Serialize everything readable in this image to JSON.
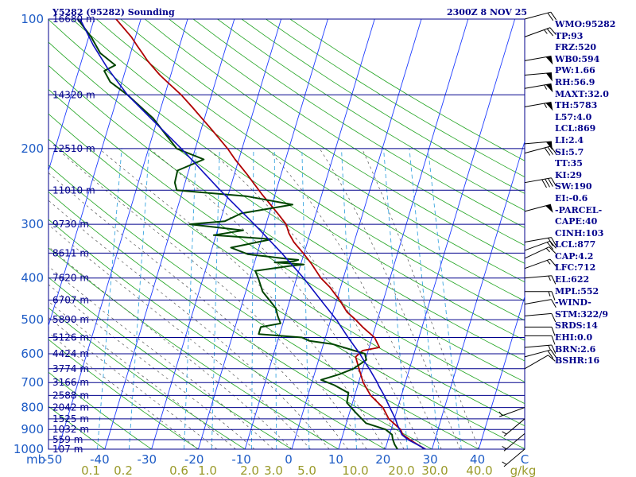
{
  "header": {
    "title": "Y5282 (95282) Sounding",
    "timestamp": "2300Z  8 NOV 25"
  },
  "indices": [
    "WMO:95282",
    "TP:93",
    "FRZ:520",
    "WB0:594",
    "PW:1.66",
    "RH:56.9",
    "MAXT:32.0",
    "TH:5783",
    "L57:4.0",
    "LCL:869",
    "LI:2.4",
    "SI:5.7",
    "TT:35",
    "KI:29",
    "SW:190",
    "EI:-0.6",
    "-PARCEL-",
    "CAPE:40",
    "CINH:103",
    "LCL:877",
    "CAP:4.2",
    "LFC:712",
    "EL:622",
    "MPL:552",
    "-WIND-",
    "STM:322/9",
    "SRDS:14",
    "EHI:0.0",
    "BRN:2.6",
    "BSHR:16"
  ],
  "colors": {
    "isobar": "#00008b",
    "isotherm": "#1e3cff",
    "dry_adiabat": "#1fa31f",
    "moist_adiabat": "#555555",
    "mixing_ratio": "#3aa6e0",
    "temperature": "#b00000",
    "dewpoint": "#004400",
    "parcel": "#1010c0",
    "wind_barb": "#000000"
  },
  "chart_data": {
    "type": "skew-t log-p sounding",
    "y_axis": {
      "unit_label": "mb",
      "scale": "log",
      "range": [
        1000,
        100
      ],
      "ticks": [
        100,
        200,
        300,
        400,
        500,
        600,
        700,
        800,
        900,
        1000
      ]
    },
    "x_axis": {
      "temperature_ticks": [
        "-50",
        "-40",
        "-30",
        "-20",
        "-10",
        "0",
        "10",
        "20",
        "30",
        "40",
        "C"
      ],
      "mixing_ratio_ticks": [
        "0.1",
        "0.2",
        "0.6",
        "1.0",
        "2.0",
        "3.0",
        "5.0",
        "10.0",
        "20.0",
        "30.0",
        "40.0",
        "g/kg"
      ]
    },
    "height_labels": [
      {
        "p": 100,
        "label": "16680 m"
      },
      {
        "p": 150,
        "label": "14320 m"
      },
      {
        "p": 200,
        "label": "12510 m"
      },
      {
        "p": 250,
        "label": "11010 m"
      },
      {
        "p": 300,
        "label": "9730 m"
      },
      {
        "p": 350,
        "label": "8611 m"
      },
      {
        "p": 400,
        "label": "7620 m"
      },
      {
        "p": 450,
        "label": "6707 m"
      },
      {
        "p": 500,
        "label": "5890 m"
      },
      {
        "p": 550,
        "label": "5126 m"
      },
      {
        "p": 600,
        "label": "4424 m"
      },
      {
        "p": 650,
        "label": "3774 m"
      },
      {
        "p": 700,
        "label": "3166 m"
      },
      {
        "p": 750,
        "label": "2588 m"
      },
      {
        "p": 800,
        "label": "2042 m"
      },
      {
        "p": 850,
        "label": "1525 m"
      },
      {
        "p": 900,
        "label": "1032 m"
      },
      {
        "p": 950,
        "label": "559 m"
      },
      {
        "p": 1000,
        "label": "107 m"
      }
    ],
    "series": [
      {
        "name": "temperature",
        "points": [
          [
            1005,
            29.0
          ],
          [
            975,
            26.6
          ],
          [
            950,
            24.6
          ],
          [
            925,
            22.8
          ],
          [
            900,
            22.0
          ],
          [
            850,
            18.8
          ],
          [
            800,
            16.8
          ],
          [
            750,
            13.4
          ],
          [
            700,
            11.0
          ],
          [
            650,
            9.2
          ],
          [
            610,
            7.7
          ],
          [
            590,
            8.8
          ],
          [
            580,
            12.2
          ],
          [
            550,
            10.5
          ],
          [
            520,
            7.3
          ],
          [
            500,
            5.3
          ],
          [
            480,
            3.0
          ],
          [
            450,
            0.6
          ],
          [
            420,
            -2.3
          ],
          [
            400,
            -4.8
          ],
          [
            370,
            -7.8
          ],
          [
            350,
            -10.2
          ],
          [
            330,
            -12.9
          ],
          [
            315,
            -14.5
          ],
          [
            300,
            -15.7
          ],
          [
            285,
            -17.9
          ],
          [
            270,
            -20.3
          ],
          [
            255,
            -22.9
          ],
          [
            230,
            -27.2
          ],
          [
            212,
            -30.8
          ],
          [
            200,
            -33.1
          ],
          [
            180,
            -37.9
          ],
          [
            160,
            -43.4
          ],
          [
            150,
            -46.5
          ],
          [
            140,
            -50.3
          ],
          [
            135,
            -52.3
          ],
          [
            125,
            -55.9
          ],
          [
            120,
            -57.5
          ],
          [
            115,
            -59.2
          ],
          [
            110,
            -60.9
          ],
          [
            100,
            -65.3
          ]
        ]
      },
      {
        "name": "dewpoint",
        "points": [
          [
            1005,
            22.8
          ],
          [
            975,
            21.7
          ],
          [
            950,
            21.0
          ],
          [
            925,
            20.5
          ],
          [
            900,
            18.8
          ],
          [
            870,
            14.2
          ],
          [
            820,
            11.2
          ],
          [
            780,
            8.8
          ],
          [
            740,
            8.5
          ],
          [
            710,
            5.0
          ],
          [
            690,
            1.8
          ],
          [
            670,
            5.3
          ],
          [
            650,
            8.0
          ],
          [
            620,
            10.2
          ],
          [
            600,
            9.5
          ],
          [
            570,
            2.0
          ],
          [
            560,
            -3.2
          ],
          [
            550,
            -5.0
          ],
          [
            540,
            -14.5
          ],
          [
            520,
            -14.5
          ],
          [
            510,
            -10.5
          ],
          [
            490,
            -11.6
          ],
          [
            470,
            -12.5
          ],
          [
            430,
            -16.4
          ],
          [
            400,
            -18.2
          ],
          [
            385,
            -19.3
          ],
          [
            375,
            -12.3
          ],
          [
            372,
            -9.3
          ],
          [
            368,
            -15.7
          ],
          [
            366,
            -11.7
          ],
          [
            363,
            -10.8
          ],
          [
            361,
            -13.2
          ],
          [
            352,
            -22.0
          ],
          [
            340,
            -26.0
          ],
          [
            325,
            -17.8
          ],
          [
            318,
            -30.5
          ],
          [
            310,
            -24.5
          ],
          [
            300,
            -36.3
          ],
          [
            295,
            -29.0
          ],
          [
            283,
            -26.0
          ],
          [
            270,
            -15.6
          ],
          [
            258,
            -26.1
          ],
          [
            250,
            -41.3
          ],
          [
            240,
            -42.2
          ],
          [
            225,
            -42.4
          ],
          [
            212,
            -37.5
          ],
          [
            200,
            -44.0
          ],
          [
            170,
            -51.0
          ],
          [
            150,
            -58.0
          ],
          [
            140,
            -62.5
          ],
          [
            132,
            -64.5
          ],
          [
            128,
            -62.5
          ],
          [
            120,
            -66.5
          ],
          [
            110,
            -69.5
          ],
          [
            100,
            -73.5
          ]
        ]
      },
      {
        "name": "parcel",
        "points": [
          [
            1005,
            29.0
          ],
          [
            975,
            26.5
          ],
          [
            950,
            24.2
          ],
          [
            925,
            22.6
          ],
          [
            900,
            21.8
          ],
          [
            877,
            21.0
          ],
          [
            850,
            20.2
          ],
          [
            800,
            18.3
          ],
          [
            750,
            16.3
          ],
          [
            712,
            14.5
          ],
          [
            700,
            14.0
          ],
          [
            650,
            11.4
          ],
          [
            622,
            9.7
          ],
          [
            600,
            8.4
          ],
          [
            552,
            5.0
          ],
          [
            500,
            1.2
          ],
          [
            450,
            -3.4
          ],
          [
            400,
            -8.5
          ],
          [
            350,
            -14.8
          ],
          [
            300,
            -22.5
          ],
          [
            250,
            -32.0
          ],
          [
            200,
            -43.0
          ],
          [
            170,
            -51.5
          ],
          [
            150,
            -58.0
          ],
          [
            130,
            -64.0
          ],
          [
            115,
            -68.5
          ],
          [
            100,
            -73.0
          ]
        ]
      }
    ],
    "wind_barbs": [
      {
        "p": 100,
        "dir": 75,
        "spd": 20
      },
      {
        "p": 110,
        "dir": 70,
        "spd": 25
      },
      {
        "p": 125,
        "dir": 80,
        "spd": 50
      },
      {
        "p": 135,
        "dir": 85,
        "spd": 50
      },
      {
        "p": 145,
        "dir": 80,
        "spd": 55
      },
      {
        "p": 160,
        "dir": 80,
        "spd": 55
      },
      {
        "p": 195,
        "dir": 85,
        "spd": 50
      },
      {
        "p": 205,
        "dir": 75,
        "spd": 30
      },
      {
        "p": 240,
        "dir": 80,
        "spd": 40
      },
      {
        "p": 280,
        "dir": 75,
        "spd": 50
      },
      {
        "p": 330,
        "dir": 80,
        "spd": 20
      },
      {
        "p": 345,
        "dir": 70,
        "spd": 20
      },
      {
        "p": 360,
        "dir": 65,
        "spd": 15
      },
      {
        "p": 380,
        "dir": 70,
        "spd": 15
      },
      {
        "p": 400,
        "dir": 85,
        "spd": 15
      },
      {
        "p": 430,
        "dir": 90,
        "spd": 15
      },
      {
        "p": 460,
        "dir": 80,
        "spd": 10
      },
      {
        "p": 490,
        "dir": 85,
        "spd": 10
      },
      {
        "p": 520,
        "dir": 90,
        "spd": 10
      },
      {
        "p": 545,
        "dir": 90,
        "spd": 10
      },
      {
        "p": 580,
        "dir": 85,
        "spd": 15
      },
      {
        "p": 610,
        "dir": 75,
        "spd": 20
      },
      {
        "p": 650,
        "dir": 60,
        "spd": 10
      },
      {
        "p": 800,
        "dir": 250,
        "spd": 5
      },
      {
        "p": 850,
        "dir": 230,
        "spd": 5
      },
      {
        "p": 920,
        "dir": 230,
        "spd": 5
      },
      {
        "p": 1000,
        "dir": 230,
        "spd": 5
      }
    ]
  }
}
